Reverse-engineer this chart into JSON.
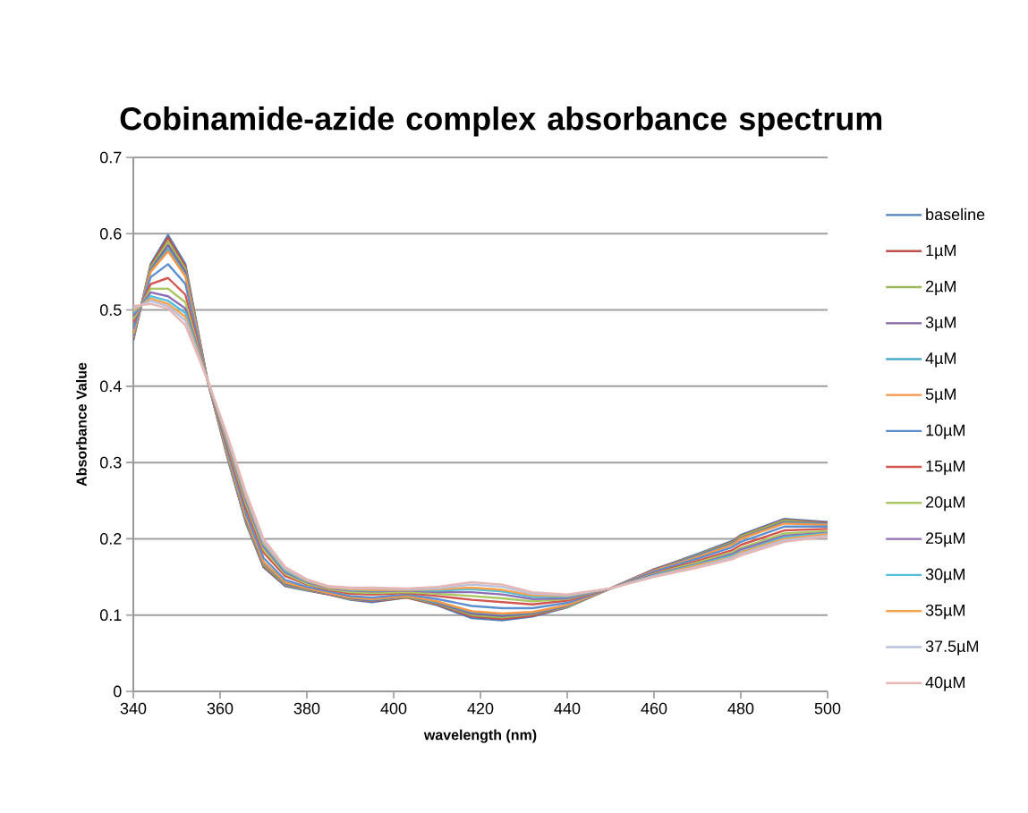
{
  "chart_data": {
    "type": "line",
    "title": "Cobinamide-azide complex absorbance spectrum",
    "xlabel": "wavelength (nm)",
    "ylabel": "Absorbance Value",
    "x": [
      340,
      344,
      348,
      352,
      357,
      362,
      366,
      370,
      375,
      380,
      385,
      390,
      395,
      403,
      410,
      418,
      425,
      432,
      440,
      450,
      460,
      470,
      478,
      480,
      490,
      500
    ],
    "xlim": [
      340,
      500
    ],
    "xticks": [
      340,
      360,
      380,
      400,
      420,
      440,
      460,
      480,
      500
    ],
    "ylim": [
      0,
      0.7
    ],
    "yticks": [
      0,
      0.1,
      0.2,
      0.3,
      0.4,
      0.5,
      0.6,
      0.7
    ],
    "grid": "y",
    "legend": "right",
    "marker": "none",
    "line_style": "solid",
    "series": [
      {
        "name": "baseline",
        "color": "#4f81bd",
        "values": [
          0.46,
          0.56,
          0.598,
          0.56,
          0.41,
          0.3,
          0.22,
          0.163,
          0.138,
          0.132,
          0.127,
          0.12,
          0.117,
          0.123,
          0.113,
          0.096,
          0.093,
          0.098,
          0.11,
          0.135,
          0.16,
          0.18,
          0.197,
          0.205,
          0.226,
          0.222
        ]
      },
      {
        "name": "1µM",
        "color": "#c0504d",
        "values": [
          0.462,
          0.558,
          0.595,
          0.557,
          0.41,
          0.301,
          0.222,
          0.164,
          0.139,
          0.133,
          0.127,
          0.121,
          0.118,
          0.123,
          0.114,
          0.098,
          0.095,
          0.099,
          0.111,
          0.135,
          0.16,
          0.179,
          0.196,
          0.204,
          0.225,
          0.221
        ]
      },
      {
        "name": "2µM",
        "color": "#9bbb59",
        "values": [
          0.464,
          0.556,
          0.59,
          0.554,
          0.41,
          0.302,
          0.223,
          0.166,
          0.14,
          0.133,
          0.128,
          0.121,
          0.119,
          0.124,
          0.115,
          0.1,
          0.097,
          0.101,
          0.111,
          0.135,
          0.159,
          0.179,
          0.195,
          0.203,
          0.224,
          0.22
        ]
      },
      {
        "name": "3µM",
        "color": "#8064a2",
        "values": [
          0.466,
          0.553,
          0.585,
          0.55,
          0.41,
          0.304,
          0.225,
          0.168,
          0.141,
          0.134,
          0.128,
          0.122,
          0.119,
          0.125,
          0.116,
          0.102,
          0.099,
          0.102,
          0.112,
          0.135,
          0.159,
          0.178,
          0.194,
          0.201,
          0.222,
          0.22
        ]
      },
      {
        "name": "4µM",
        "color": "#4bacc6",
        "values": [
          0.468,
          0.551,
          0.58,
          0.546,
          0.41,
          0.305,
          0.227,
          0.169,
          0.142,
          0.135,
          0.129,
          0.123,
          0.12,
          0.125,
          0.117,
          0.104,
          0.101,
          0.103,
          0.113,
          0.135,
          0.158,
          0.177,
          0.193,
          0.2,
          0.221,
          0.219
        ]
      },
      {
        "name": "5µM",
        "color": "#f79646",
        "values": [
          0.469,
          0.55,
          0.577,
          0.544,
          0.41,
          0.306,
          0.228,
          0.17,
          0.143,
          0.135,
          0.129,
          0.123,
          0.121,
          0.125,
          0.118,
          0.105,
          0.102,
          0.104,
          0.113,
          0.135,
          0.158,
          0.176,
          0.192,
          0.2,
          0.22,
          0.218
        ]
      },
      {
        "name": "10µM",
        "color": "#5b8fd0",
        "values": [
          0.475,
          0.543,
          0.56,
          0.534,
          0.41,
          0.31,
          0.233,
          0.175,
          0.146,
          0.137,
          0.131,
          0.125,
          0.123,
          0.127,
          0.121,
          0.112,
          0.109,
          0.109,
          0.116,
          0.135,
          0.157,
          0.174,
          0.189,
          0.196,
          0.216,
          0.216
        ]
      },
      {
        "name": "15µM",
        "color": "#d3554f",
        "values": [
          0.483,
          0.534,
          0.542,
          0.52,
          0.41,
          0.315,
          0.24,
          0.182,
          0.151,
          0.14,
          0.133,
          0.128,
          0.127,
          0.129,
          0.125,
          0.12,
          0.117,
          0.114,
          0.119,
          0.135,
          0.155,
          0.171,
          0.185,
          0.192,
          0.211,
          0.213
        ]
      },
      {
        "name": "20µM",
        "color": "#a9c862",
        "values": [
          0.488,
          0.528,
          0.528,
          0.51,
          0.41,
          0.319,
          0.245,
          0.186,
          0.154,
          0.141,
          0.134,
          0.13,
          0.129,
          0.13,
          0.128,
          0.125,
          0.122,
          0.118,
          0.121,
          0.135,
          0.154,
          0.169,
          0.182,
          0.188,
          0.207,
          0.21
        ]
      },
      {
        "name": "25µM",
        "color": "#8d6fb3",
        "values": [
          0.492,
          0.523,
          0.518,
          0.502,
          0.41,
          0.322,
          0.249,
          0.19,
          0.156,
          0.143,
          0.135,
          0.132,
          0.131,
          0.132,
          0.13,
          0.13,
          0.127,
          0.121,
          0.122,
          0.135,
          0.153,
          0.167,
          0.18,
          0.186,
          0.204,
          0.208
        ]
      },
      {
        "name": "30µM",
        "color": "#4fbfdb",
        "values": [
          0.496,
          0.518,
          0.512,
          0.496,
          0.41,
          0.324,
          0.252,
          0.193,
          0.158,
          0.144,
          0.136,
          0.133,
          0.132,
          0.133,
          0.132,
          0.134,
          0.131,
          0.124,
          0.124,
          0.135,
          0.152,
          0.166,
          0.178,
          0.183,
          0.202,
          0.207
        ]
      },
      {
        "name": "35µM",
        "color": "#f7a24f",
        "values": [
          0.499,
          0.515,
          0.508,
          0.491,
          0.41,
          0.326,
          0.254,
          0.195,
          0.16,
          0.145,
          0.136,
          0.134,
          0.133,
          0.133,
          0.134,
          0.136,
          0.133,
          0.126,
          0.125,
          0.135,
          0.151,
          0.165,
          0.176,
          0.182,
          0.2,
          0.206
        ]
      },
      {
        "name": "37.5µM",
        "color": "#b8c2db",
        "values": [
          0.502,
          0.512,
          0.505,
          0.486,
          0.41,
          0.328,
          0.257,
          0.197,
          0.161,
          0.146,
          0.137,
          0.135,
          0.135,
          0.134,
          0.135,
          0.14,
          0.137,
          0.128,
          0.126,
          0.135,
          0.151,
          0.163,
          0.175,
          0.18,
          0.198,
          0.204
        ]
      },
      {
        "name": "40µM",
        "color": "#e6b6b4",
        "values": [
          0.505,
          0.508,
          0.502,
          0.48,
          0.41,
          0.33,
          0.26,
          0.2,
          0.163,
          0.147,
          0.138,
          0.136,
          0.136,
          0.135,
          0.137,
          0.143,
          0.14,
          0.13,
          0.127,
          0.135,
          0.15,
          0.162,
          0.173,
          0.178,
          0.196,
          0.203
        ]
      }
    ]
  }
}
